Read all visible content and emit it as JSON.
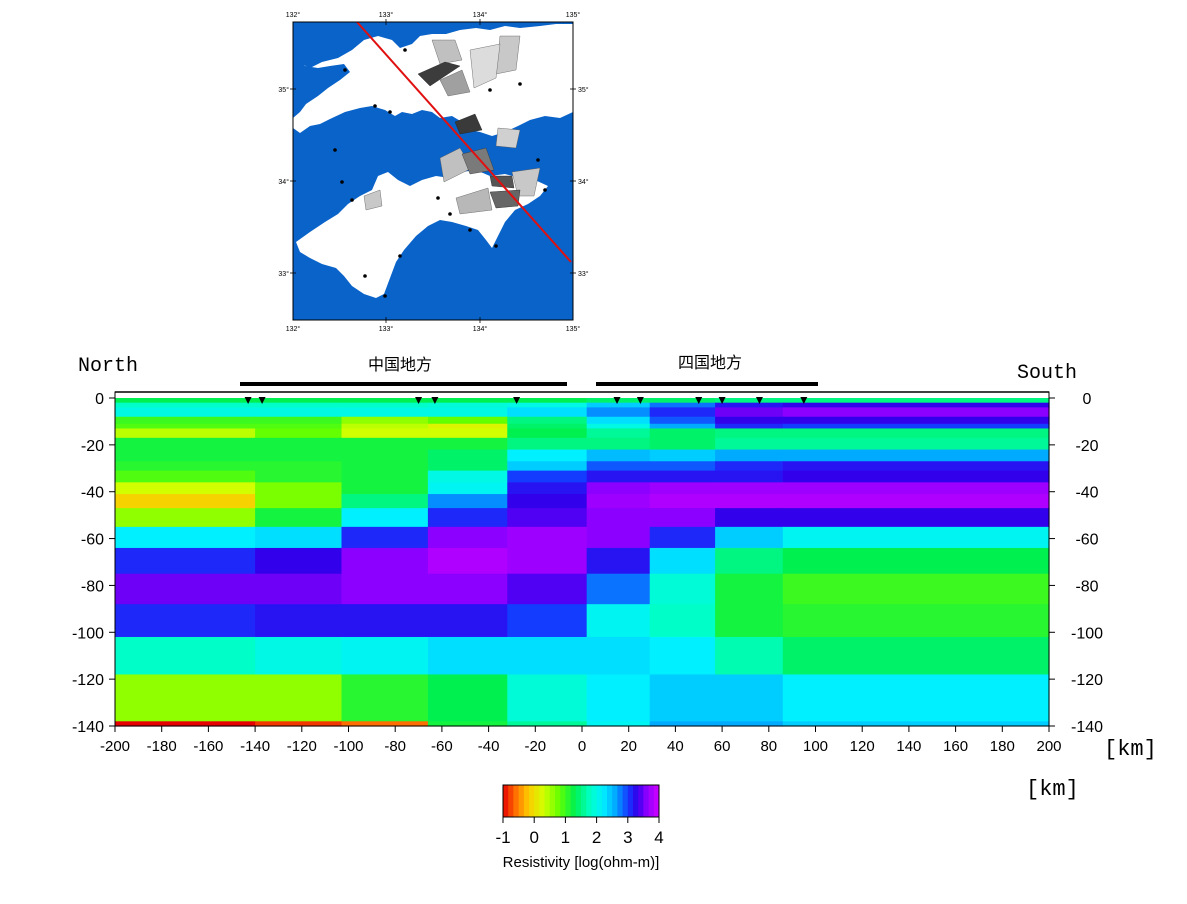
{
  "map": {
    "lon_ticks": [
      "132°",
      "133°",
      "134°",
      "135°"
    ],
    "lat_ticks": [
      "35°",
      "34°",
      "33°"
    ],
    "profile_line_color": "#e01010",
    "sea_color": "#0a63c9"
  },
  "section": {
    "north_label": "North",
    "south_label": "South",
    "region_1_label": "中国地方",
    "region_2_label": "四国地方",
    "x_unit_label": "[km]",
    "y_unit_label": "[km]",
    "station_km": [
      -143,
      -137,
      -70,
      -63,
      -28,
      15,
      25,
      50,
      60,
      76,
      95
    ]
  },
  "colorbar": {
    "title": "Resistivity [log(ohm-m)]",
    "ticks": [
      "-1",
      "0",
      "1",
      "2",
      "3",
      "4"
    ],
    "range": [
      -1,
      4
    ]
  },
  "chart_data": {
    "type": "heatmap",
    "x_range": [
      -200,
      200
    ],
    "y_range": [
      -140,
      0
    ],
    "x_ticks": [
      "-200",
      "-180",
      "-160",
      "-140",
      "-120",
      "-100",
      "-80",
      "-60",
      "-40",
      "-20",
      "0",
      "20",
      "40",
      "60",
      "80",
      "100",
      "120",
      "140",
      "160",
      "180",
      "200"
    ],
    "y_ticks": [
      "0",
      "-20",
      "-40",
      "-60",
      "-80",
      "-100",
      "-120",
      "-140"
    ],
    "x_edges": [
      -200,
      -140,
      -103,
      -66,
      -32,
      2,
      29,
      57,
      86,
      200
    ],
    "y_edges": [
      0,
      -2,
      -4,
      -8,
      -11,
      -13,
      -17,
      -22,
      -27,
      -31,
      -36,
      -41,
      -47,
      -55,
      -64,
      -75,
      -88,
      -102,
      -118,
      -138,
      -140
    ],
    "values": [
      [
        1.3,
        1.3,
        1.3,
        1.3,
        1.3,
        1.4,
        1.4,
        1.5,
        1.5
      ],
      [
        1.8,
        1.8,
        1.8,
        1.9,
        2.0,
        2.4,
        2.8,
        3.2,
        3.3
      ],
      [
        2.0,
        2.0,
        2.0,
        2.0,
        2.3,
        2.7,
        3.1,
        3.5,
        3.6
      ],
      [
        1.0,
        1.0,
        0.6,
        0.8,
        1.5,
        2.3,
        2.9,
        3.3,
        3.3
      ],
      [
        0.9,
        0.9,
        0.4,
        0.2,
        1.4,
        2.0,
        2.6,
        3.1,
        3.0
      ],
      [
        0.4,
        0.8,
        0.3,
        0.3,
        1.3,
        1.6,
        1.4,
        1.5,
        1.5
      ],
      [
        1.2,
        1.2,
        1.2,
        1.2,
        1.5,
        1.5,
        1.4,
        1.6,
        1.6
      ],
      [
        1.2,
        1.2,
        1.2,
        1.4,
        2.2,
        2.5,
        2.4,
        2.6,
        2.6
      ],
      [
        1.1,
        1.1,
        1.2,
        1.4,
        2.4,
        2.9,
        2.9,
        3.1,
        3.2
      ],
      [
        0.9,
        1.1,
        1.2,
        2.0,
        3.0,
        3.2,
        3.2,
        3.2,
        3.3
      ],
      [
        0.3,
        0.7,
        1.2,
        2.1,
        3.2,
        3.6,
        3.7,
        3.7,
        3.7
      ],
      [
        -0.1,
        0.7,
        1.5,
        2.7,
        3.3,
        3.7,
        3.8,
        3.8,
        3.8
      ],
      [
        0.6,
        1.2,
        2.2,
        3.1,
        3.4,
        3.6,
        3.6,
        3.3,
        3.3
      ],
      [
        2.2,
        2.3,
        3.1,
        3.6,
        3.7,
        3.6,
        3.1,
        2.4,
        2.1
      ],
      [
        3.1,
        3.3,
        3.6,
        3.8,
        3.7,
        3.2,
        2.3,
        1.5,
        1.3
      ],
      [
        3.5,
        3.5,
        3.6,
        3.6,
        3.4,
        2.8,
        1.9,
        1.2,
        1.0
      ],
      [
        3.1,
        3.2,
        3.2,
        3.2,
        3.0,
        2.1,
        1.8,
        1.2,
        1.1
      ],
      [
        1.8,
        2.0,
        2.1,
        2.3,
        2.3,
        2.3,
        2.2,
        1.7,
        1.4
      ],
      [
        0.6,
        0.6,
        1.1,
        1.3,
        1.9,
        2.2,
        2.4,
        2.4,
        2.2
      ],
      [
        -1.0,
        -0.8,
        -0.6,
        1.2,
        1.6,
        2.1,
        2.6,
        2.6,
        2.4
      ]
    ]
  }
}
